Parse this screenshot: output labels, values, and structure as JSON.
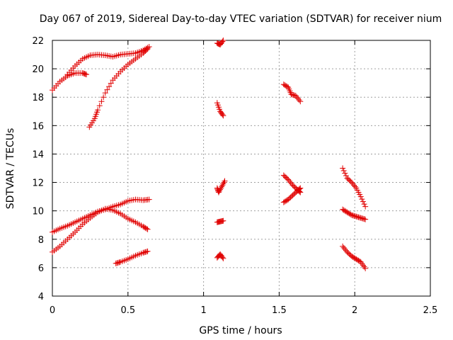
{
  "chart_data": {
    "type": "scatter",
    "title": "Day 067 of 2019, Sidereal Day-to-day VTEC variation (SDTVAR) for receiver nium",
    "xlabel": "GPS time / hours",
    "ylabel": "SDTVAR / TECUs",
    "xlim": [
      0,
      2.5
    ],
    "ylim": [
      4,
      22
    ],
    "xticks": [
      0,
      0.5,
      1,
      1.5,
      2,
      2.5
    ],
    "xtick_labels": [
      "0",
      "0.5",
      "1",
      "1.5",
      "2",
      "2.5"
    ],
    "yticks": [
      4,
      6,
      8,
      10,
      12,
      14,
      16,
      18,
      20,
      22
    ],
    "ytick_labels": [
      "4",
      "6",
      "8",
      "10",
      "12",
      "14",
      "16",
      "18",
      "20",
      "22"
    ],
    "grid": true,
    "marker": "+",
    "color": "#e00000",
    "tracks": [
      {
        "x": [
          0.0,
          0.05,
          0.1,
          0.15,
          0.2,
          0.225
        ],
        "y": [
          18.5,
          19.1,
          19.5,
          19.7,
          19.7,
          19.6
        ]
      },
      {
        "x": [
          0.1,
          0.15,
          0.2,
          0.25,
          0.3,
          0.35,
          0.4,
          0.45,
          0.5,
          0.55,
          0.6,
          0.64
        ],
        "y": [
          19.6,
          20.2,
          20.7,
          20.95,
          21.0,
          20.95,
          20.85,
          21.0,
          21.05,
          21.1,
          21.3,
          21.55
        ]
      },
      {
        "x": [
          0.245,
          0.28,
          0.3,
          0.35,
          0.4,
          0.45,
          0.5,
          0.55,
          0.6,
          0.63
        ],
        "y": [
          15.9,
          16.5,
          17.1,
          18.3,
          19.2,
          19.8,
          20.3,
          20.7,
          21.1,
          21.4
        ]
      },
      {
        "x": [
          1.09,
          1.11,
          1.13
        ],
        "y": [
          21.8,
          21.7,
          22.0
        ]
      },
      {
        "x": [
          1.09,
          1.11,
          1.13
        ],
        "y": [
          17.6,
          17.0,
          16.7
        ]
      },
      {
        "x": [
          1.53,
          1.56,
          1.58,
          1.61,
          1.64
        ],
        "y": [
          18.9,
          18.7,
          18.2,
          18.1,
          17.7
        ]
      },
      {
        "x": [
          0.0,
          0.05,
          0.1,
          0.15,
          0.2,
          0.25,
          0.3,
          0.35,
          0.4,
          0.45,
          0.5,
          0.55,
          0.6,
          0.64
        ],
        "y": [
          8.5,
          8.75,
          8.95,
          9.2,
          9.45,
          9.7,
          9.95,
          10.1,
          10.3,
          10.45,
          10.7,
          10.8,
          10.75,
          10.8
        ]
      },
      {
        "x": [
          0.0,
          0.05,
          0.1,
          0.15,
          0.2,
          0.25,
          0.3,
          0.35,
          0.4,
          0.45,
          0.5,
          0.55,
          0.6,
          0.63
        ],
        "y": [
          7.1,
          7.5,
          8.0,
          8.5,
          9.05,
          9.5,
          9.9,
          10.15,
          10.05,
          9.8,
          9.45,
          9.2,
          8.9,
          8.7
        ]
      },
      {
        "x": [
          0.42,
          0.45,
          0.5,
          0.55,
          0.6,
          0.63
        ],
        "y": [
          6.3,
          6.4,
          6.6,
          6.85,
          7.05,
          7.15
        ]
      },
      {
        "x": [
          1.09,
          1.1,
          1.12,
          1.14
        ],
        "y": [
          11.6,
          11.3,
          11.7,
          12.1
        ]
      },
      {
        "x": [
          1.09,
          1.11,
          1.13
        ],
        "y": [
          9.2,
          9.25,
          9.3
        ]
      },
      {
        "x": [
          1.09,
          1.11,
          1.13
        ],
        "y": [
          6.7,
          6.95,
          6.65
        ]
      },
      {
        "x": [
          1.53,
          1.56,
          1.59,
          1.62,
          1.64
        ],
        "y": [
          12.5,
          12.2,
          11.8,
          11.5,
          11.3
        ]
      },
      {
        "x": [
          1.53,
          1.56,
          1.59,
          1.62,
          1.64
        ],
        "y": [
          10.6,
          10.8,
          11.1,
          11.4,
          11.6
        ]
      },
      {
        "x": [
          1.92,
          1.95,
          1.98,
          2.01,
          2.04,
          2.07
        ],
        "y": [
          13.0,
          12.3,
          12.0,
          11.6,
          11.0,
          10.3
        ]
      },
      {
        "x": [
          1.92,
          1.95,
          1.98,
          2.01,
          2.04,
          2.07
        ],
        "y": [
          10.1,
          9.9,
          9.7,
          9.6,
          9.5,
          9.4
        ]
      },
      {
        "x": [
          1.92,
          1.95,
          1.98,
          2.01,
          2.04,
          2.07
        ],
        "y": [
          7.5,
          7.1,
          6.8,
          6.6,
          6.4,
          5.95
        ]
      }
    ]
  }
}
